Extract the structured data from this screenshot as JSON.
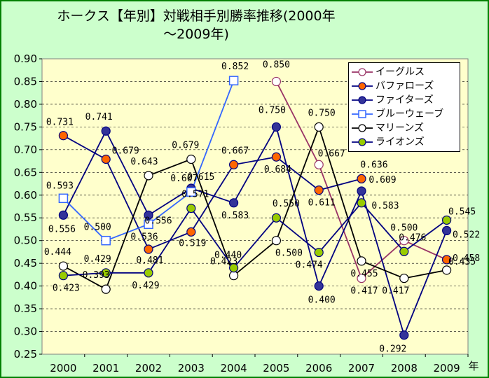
{
  "chart_data": {
    "type": "line",
    "title": "ホークス【年別】対戦相手別勝率推移(2000年～2009年)",
    "title_lines": [
      "ホークス【年別】対戦相手別勝率推移(2000年",
      "～2009年)"
    ],
    "xlabel": "年",
    "ylabel": "",
    "categories": [
      "2000",
      "2001",
      "2002",
      "2003",
      "2004",
      "2005",
      "2006",
      "2007",
      "2008",
      "2009"
    ],
    "y_ticks": [
      "0.25",
      "0.30",
      "0.35",
      "0.40",
      "0.45",
      "0.50",
      "0.55",
      "0.60",
      "0.65",
      "0.70",
      "0.75",
      "0.80",
      "0.85",
      "0.90"
    ],
    "ylim": [
      0.25,
      0.9
    ],
    "grid": "horizontal dashed",
    "legend_position": "top-right",
    "plot_background": "#ffffcc",
    "series": [
      {
        "name": "イーグルス",
        "color": "#993366",
        "marker": "circle",
        "marker_fill": "#ffffff",
        "values": [
          null,
          null,
          null,
          null,
          null,
          0.85,
          0.667,
          0.417,
          0.5,
          0.458
        ],
        "labels": [
          null,
          null,
          null,
          null,
          null,
          "0.850",
          "0.667",
          "0.417",
          "0.500",
          null
        ]
      },
      {
        "name": "バファローズ",
        "color": "#000080",
        "marker": "circle",
        "marker_fill": "#ff6600",
        "values": [
          0.731,
          0.679,
          0.481,
          0.519,
          0.667,
          0.684,
          0.611,
          0.636,
          null,
          0.458
        ],
        "labels": [
          "0.731",
          "0.679",
          "0.481",
          "0.519",
          "0.667",
          "0.684",
          "0.611",
          "0.636",
          null,
          "0.458"
        ]
      },
      {
        "name": "ファイターズ",
        "color": "#000080",
        "marker": "circle",
        "marker_fill": "#333399",
        "values": [
          0.556,
          0.741,
          0.556,
          0.615,
          0.583,
          0.75,
          0.4,
          0.609,
          0.292,
          0.522
        ],
        "labels": [
          "0.556",
          "0.741",
          "0.556",
          "0.615",
          "0.583",
          "0.750",
          "0.400",
          "0.609",
          "0.292",
          "0.522"
        ]
      },
      {
        "name": "ブルーウェーブ",
        "color": "#3366ff",
        "marker": "square",
        "marker_fill": "#ffffff",
        "values": [
          0.593,
          0.5,
          0.536,
          0.607,
          0.852,
          null,
          null,
          null,
          null,
          null
        ],
        "labels": [
          "0.593",
          "0.500",
          "0.536",
          "0.607",
          "0.852",
          null,
          null,
          null,
          null,
          null
        ]
      },
      {
        "name": "マリーンズ",
        "color": "#000000",
        "marker": "circle",
        "marker_fill": "#ffffff",
        "values": [
          0.444,
          0.393,
          0.643,
          0.679,
          0.423,
          0.5,
          0.75,
          0.455,
          0.417,
          0.435
        ],
        "labels": [
          "0.444",
          "0.393",
          "0.643",
          "0.679",
          "0.423",
          "0.500",
          "0.750",
          "0.455",
          "0.417",
          "0.435"
        ]
      },
      {
        "name": "ライオンズ",
        "color": "#000080",
        "marker": "circle",
        "marker_fill": "#99cc00",
        "values": [
          0.423,
          0.429,
          0.429,
          0.571,
          0.44,
          0.55,
          0.474,
          0.583,
          0.476,
          0.545
        ],
        "labels": [
          "0.423",
          "0.429",
          "0.429",
          "0.571",
          "0.440",
          "0.550",
          "0.474",
          "0.583",
          "0.476",
          "0.545"
        ]
      }
    ]
  }
}
